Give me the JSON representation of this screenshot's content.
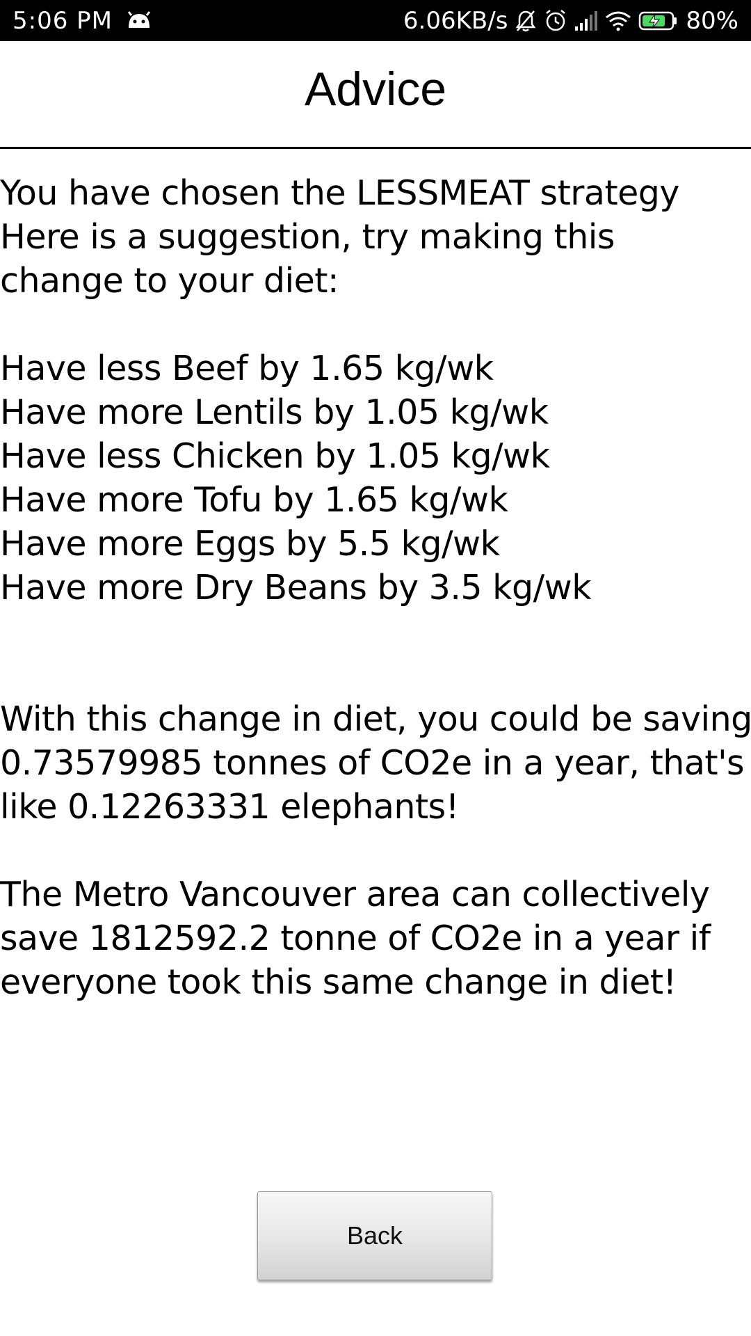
{
  "status_bar": {
    "time": "5:06 PM",
    "network_speed": "6.06KB/s",
    "battery": "80%",
    "icons": [
      "android-notification-icon",
      "mute-icon",
      "alarm-icon",
      "signal-icon",
      "wifi-icon",
      "battery-charging-icon"
    ],
    "battery_level": 0.8,
    "battery_color": "#4cd964"
  },
  "header": {
    "title": "Advice"
  },
  "intro": {
    "line1": "You have chosen the LESSMEAT strategy",
    "line2": "Here is a suggestion, try making this",
    "line3": "change to your diet:"
  },
  "suggestions": [
    "Have less Beef by 1.65 kg/wk",
    "Have more Lentils by 1.05 kg/wk",
    "Have less Chicken by 1.05 kg/wk",
    "Have more Tofu by 1.65 kg/wk",
    "Have more Eggs by 5.5 kg/wk",
    "Have more Dry Beans by 3.5 kg/wk"
  ],
  "savings": {
    "line1": "With this change in diet, you could be saving",
    "line2": "0.73579985 tonnes of CO2e in a year, that's",
    "line3": "like 0.12263331 elephants!"
  },
  "community": {
    "line1": "The Metro Vancouver area can collectively",
    "line2": "save 1812592.2 tonne of CO2e in a year if",
    "line3": "everyone took this same change in diet!"
  },
  "back_button": {
    "label": "Back"
  }
}
